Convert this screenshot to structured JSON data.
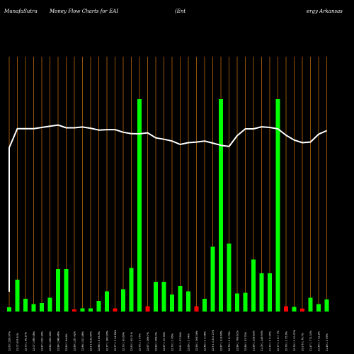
{
  "title": {
    "brand": "MunafaSutra",
    "main": "Money Flow  Charts for EAI",
    "company_part1": "(Ent",
    "company_part2": "ergy Arkansas"
  },
  "colors": {
    "background": "#000000",
    "grid": "#b8660b",
    "positive": "#00ff00",
    "negative": "#ff0000",
    "price_line": "#ffffff",
    "text": "#ffffff"
  },
  "chart_data": {
    "type": "bar",
    "grid": true,
    "price_line": true,
    "categories": [
      "22.60 1506.97%",
      "22.07 637.61%",
      "22.70 1 56.37%",
      "22.07 1399.08%",
      "22.87 1003.34%",
      "22.84 1305.34%",
      "22.84 1346.48%",
      "22.80 1 84.6%",
      "22.86 1157.42%",
      "22.86 1317.48%",
      "22.9  1  6 23.87%",
      "22.88 1 6 83.3%",
      "22.77 1 280.99%",
      "22.77 1 0 24.96%",
      "22.73 1 60.69%",
      "22.80 1 60.01%",
      "22.76 1 0 07%",
      "22.67 1 269.7%",
      "22.84 1 263.0%",
      "22.67 1 00.76%",
      "22.73 1 0 06%",
      "22.61 1 57.26%",
      "22.66 1 0 04%",
      "22.56 1 263.06%",
      "22.46 1 0 0.06%",
      "22.9 1 0 201.72%",
      "22.87 1 313.66%",
      "22.78 1 0 8.73%",
      "22.84 1 789.61%",
      "22.86 1 53.75%",
      "21.89 1 253.62%",
      "21.09 1 249.90%",
      "21.72 1 0 5.37%",
      "20.77 1 0 8.7 7%",
      "20.76 1 2 05.9%",
      "20.76 1 2 00.07%",
      "20.9  6  1 76.7%",
      "21.47 1 771.02%",
      "21.49 1 7 22.2%",
      "21.49 1 3 59%"
    ],
    "flow_values": [
      2,
      15,
      6,
      3.5,
      4,
      6.5,
      20,
      20,
      -1,
      1.5,
      1.5,
      5,
      9.5,
      -1.5,
      10.5,
      20.5,
      100,
      -2.5,
      14,
      14,
      8,
      12,
      9.5,
      -2.5,
      6,
      30.5,
      100,
      32,
      8.5,
      8.8,
      24.5,
      18,
      18,
      100,
      -2.5,
      2.2,
      -1.4,
      6.5,
      3.5,
      5.7
    ],
    "price": [
      22.55,
      21.6,
      21.6,
      21.6,
      21.54,
      21.48,
      21.42,
      21.56,
      21.56,
      21.52,
      21.58,
      21.67,
      21.65,
      21.65,
      21.78,
      21.85,
      21.86,
      21.81,
      22.06,
      22.13,
      22.22,
      22.39,
      22.3,
      22.27,
      22.22,
      22.32,
      22.43,
      22.49,
      21.95,
      21.61,
      21.61,
      21.51,
      21.54,
      21.61,
      21.93,
      22.17,
      22.3,
      22.27,
      21.88,
      21.7
    ]
  }
}
